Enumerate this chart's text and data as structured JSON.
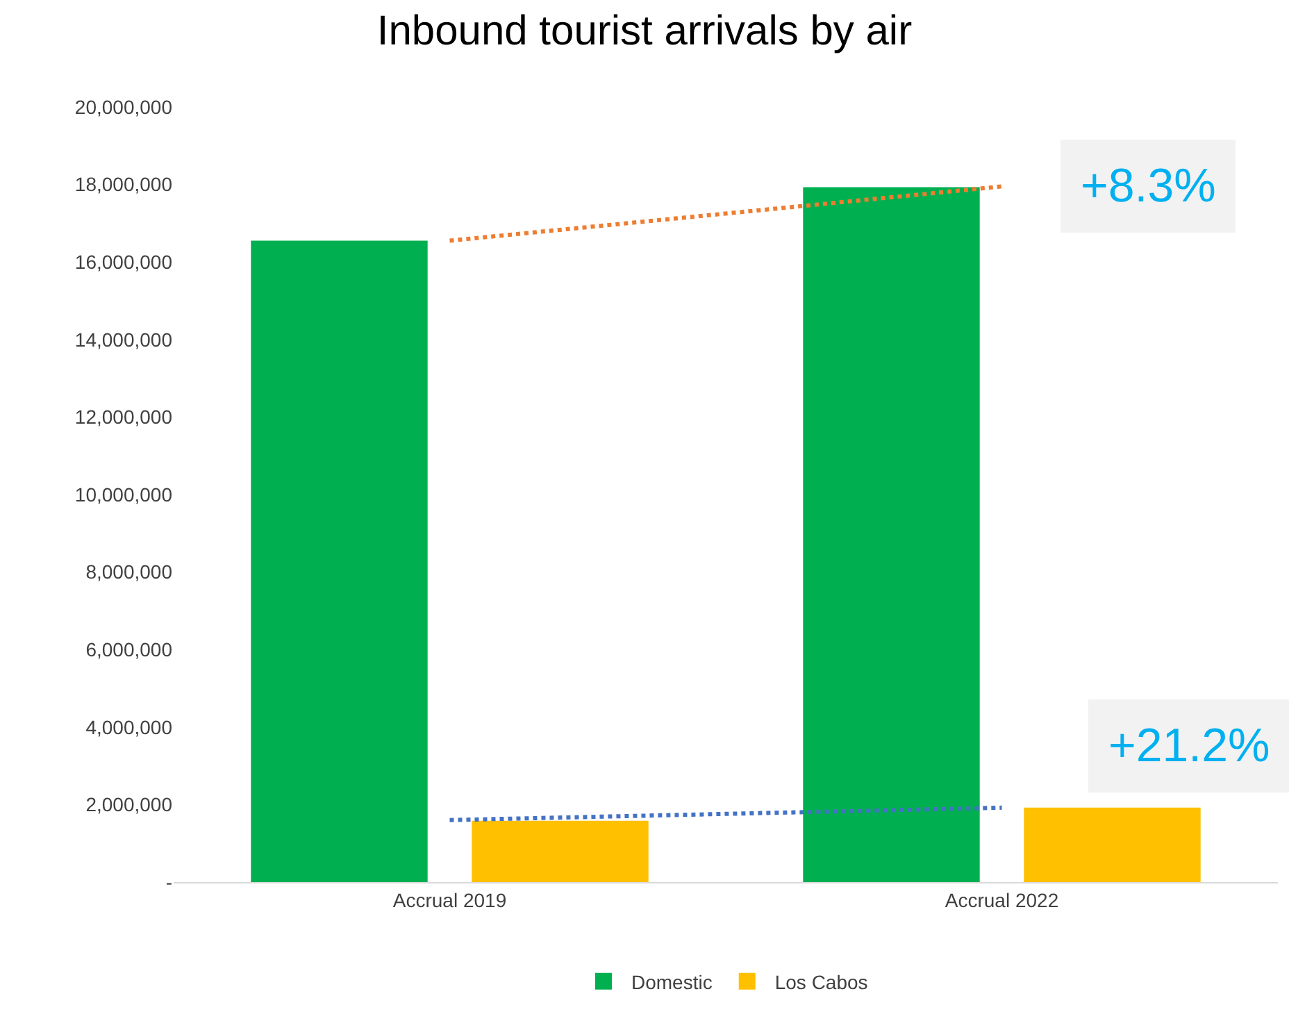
{
  "chart_data": {
    "type": "bar",
    "title": "Inbound tourist arrivals by air",
    "categories": [
      "Accrual 2019",
      "Accrual 2022"
    ],
    "series": [
      {
        "name": "Domestic",
        "color": "#00b050",
        "values": [
          16550000,
          17930000
        ]
      },
      {
        "name": "Los Cabos",
        "color": "#ffc000",
        "values": [
          1580000,
          1920000
        ]
      },
      {
        "type": "line",
        "color": "#ed7d31",
        "line_style": "dotted",
        "values": [
          16550000,
          17950000
        ]
      },
      {
        "type": "line",
        "color": "#4472c4",
        "line_style": "dotted",
        "values": [
          1600000,
          1920000
        ]
      }
    ],
    "ylim": [
      0,
      20000000
    ],
    "yticks": [
      {
        "value": 0,
        "label": "-"
      },
      {
        "value": 2000000,
        "label": "2,000,000"
      },
      {
        "value": 4000000,
        "label": "4,000,000"
      },
      {
        "value": 6000000,
        "label": "6,000,000"
      },
      {
        "value": 8000000,
        "label": "8,000,000"
      },
      {
        "value": 10000000,
        "label": "10,000,000"
      },
      {
        "value": 12000000,
        "label": "12,000,000"
      },
      {
        "value": 14000000,
        "label": "14,000,000"
      },
      {
        "value": 16000000,
        "label": "16,000,000"
      },
      {
        "value": 18000000,
        "label": "18,000,000"
      },
      {
        "value": 20000000,
        "label": "20,000,000"
      }
    ],
    "annotations": [
      {
        "text": "+8.3%",
        "x": "Accrual 2022",
        "y": 17950000
      },
      {
        "text": "+21.2%",
        "x": "Accrual 2022",
        "y": 1920000
      }
    ],
    "grid": false,
    "legend": "bottom"
  }
}
